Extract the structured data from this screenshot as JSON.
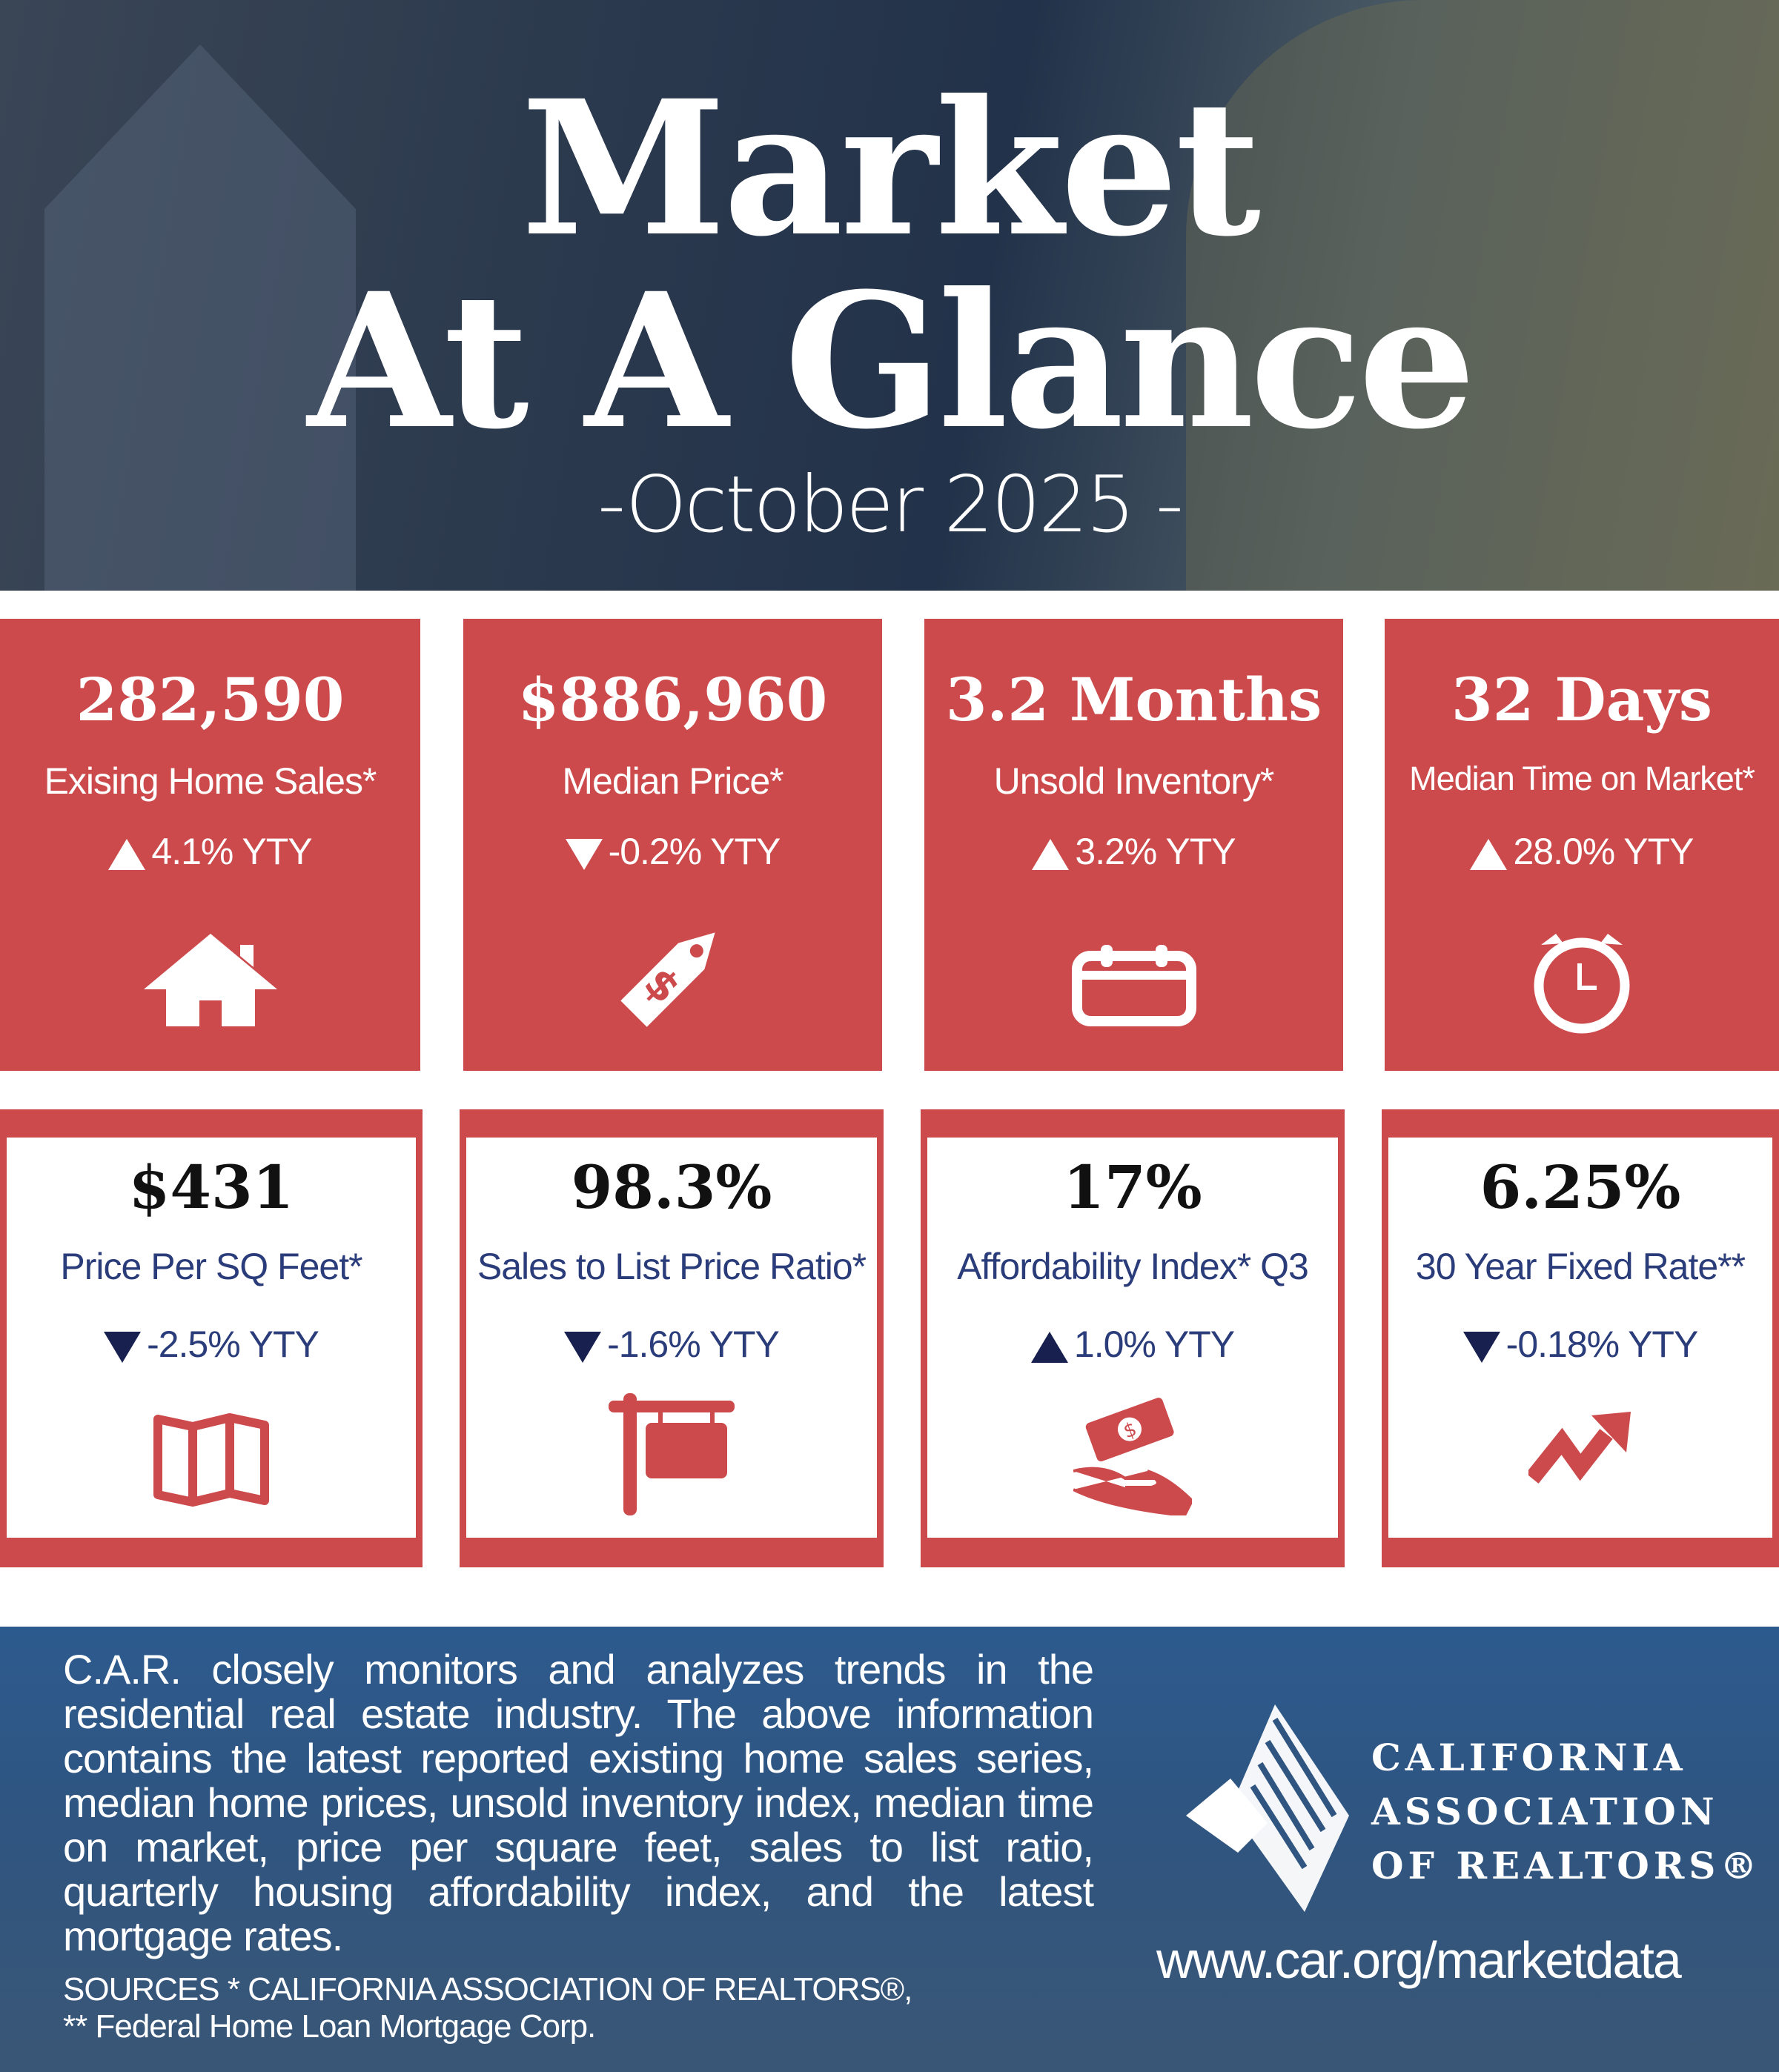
{
  "header": {
    "title_line1": "Market",
    "title_line2": "At A Glance",
    "subtitle": "-October 2025 -"
  },
  "colors": {
    "red": "#cc4a4b",
    "navy": "#17204f",
    "label_blue": "#2a3d7a",
    "footer_blue": "#2d5a8e"
  },
  "top_cards": [
    {
      "value": "282,590",
      "label": "Exising Home Sales*",
      "change": "4.1% YTY",
      "direction": "up",
      "icon": "house-icon"
    },
    {
      "value": "$886,960",
      "label": "Median Price*",
      "change": "-0.2% YTY",
      "direction": "down",
      "icon": "price-tag-icon"
    },
    {
      "value": "3.2 Months",
      "label": "Unsold Inventory*",
      "change": "3.2% YTY",
      "direction": "up",
      "icon": "calendar-icon"
    },
    {
      "value": "32 Days",
      "label": "Median Time on Market*",
      "change": "28.0% YTY",
      "direction": "up",
      "icon": "alarm-clock-icon"
    }
  ],
  "bottom_cards": [
    {
      "value": "$431",
      "label": "Price Per SQ Feet*",
      "change": "-2.5% YTY",
      "direction": "down",
      "icon": "map-icon"
    },
    {
      "value": "98.3%",
      "label": "Sales to List Price Ratio*",
      "change": "-1.6% YTY",
      "direction": "down",
      "icon": "for-sale-sign-icon"
    },
    {
      "value": "17%",
      "label": "Affordability Index* Q3",
      "change": "1.0% YTY",
      "direction": "up",
      "icon": "money-hand-icon"
    },
    {
      "value": "6.25%",
      "label": "30 Year Fixed Rate**",
      "change": "-0.18% YTY",
      "direction": "down",
      "icon": "trend-arrow-icon"
    }
  ],
  "footer": {
    "paragraph": "C.A.R. closely monitors and analyzes trends in the residential real estate industry. The above information contains the latest reported existing home sales series, median home prices, unsold inventory index, median time on market, price per square feet, sales to list ratio, quarterly housing affordability index, and the latest mortgage rates.",
    "sources_line1": "SOURCES * CALIFORNIA ASSOCIATION OF REALTORS®,",
    "sources_line2": "** Federal Home Loan Mortgage Corp.",
    "org_line1": "CALIFORNIA",
    "org_line2": "ASSOCIATION",
    "org_line3": "OF REALTORS®",
    "url": "www.car.org/marketdata"
  }
}
